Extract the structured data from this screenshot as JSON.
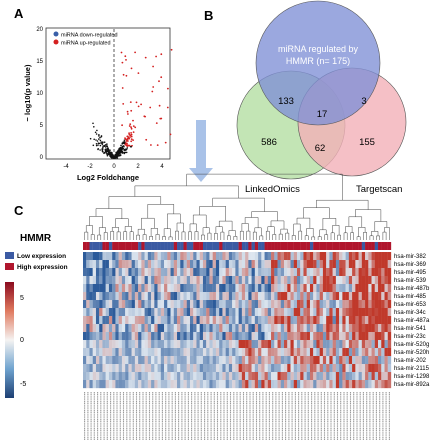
{
  "panels": {
    "a": "A",
    "b": "B",
    "c": "C"
  },
  "volcano": {
    "xlabel": "Log2 Foldchange",
    "ylabel": "− log10(p value)",
    "xticks": [
      "-4",
      "-2",
      "0",
      "2",
      "4"
    ],
    "yticks": [
      "0",
      "5",
      "10",
      "15",
      "20"
    ],
    "legend": [
      {
        "label": "miRNA down-regulated",
        "color": "#3a5fa8"
      },
      {
        "label": "miRNA up-regulated",
        "color": "#d42020"
      }
    ]
  },
  "venn": {
    "sets": [
      {
        "name": "miRNA regulated by HMMR (n= 175)",
        "line1": "miRNA regulated by",
        "line2": "HMMR (n= 175)",
        "color": "#7f8fd6"
      },
      {
        "name": "LinkedOmics",
        "color": "#b9e0a8"
      },
      {
        "name": "Targetscan",
        "color": "#f2b0b8"
      }
    ],
    "regions": {
      "hmmr_linked": "133",
      "all_three": "17",
      "hmmr_target": "3",
      "linked_only": "586",
      "linked_target": "62",
      "target_only": "155"
    }
  },
  "heatmap": {
    "group_title": "HMMR",
    "group_legend": [
      {
        "label": "Low expression",
        "color": "#3b5aa3"
      },
      {
        "label": "High expression",
        "color": "#b0162d"
      }
    ],
    "scale_ticks": [
      "5",
      "0",
      "-5"
    ],
    "rows": [
      "hsa-mir-382",
      "hsa-mir-369",
      "hsa-mir-495",
      "hsa-mir-539",
      "hsa-mir-487b",
      "hsa-mir-485",
      "hsa-mir-653",
      "hsa-mir-34c",
      "hsa-mir-487a",
      "hsa-mir-541",
      "hsa-mir-23c",
      "hsa-mir-520g",
      "hsa-mir-520h",
      "hsa-mir-202",
      "hsa-mir-2115",
      "hsa-mir-1298",
      "hsa-mir-892a"
    ],
    "colors": {
      "low": "#2c5b9a",
      "mid": "#dde6ef",
      "high": "#c0392b"
    }
  }
}
